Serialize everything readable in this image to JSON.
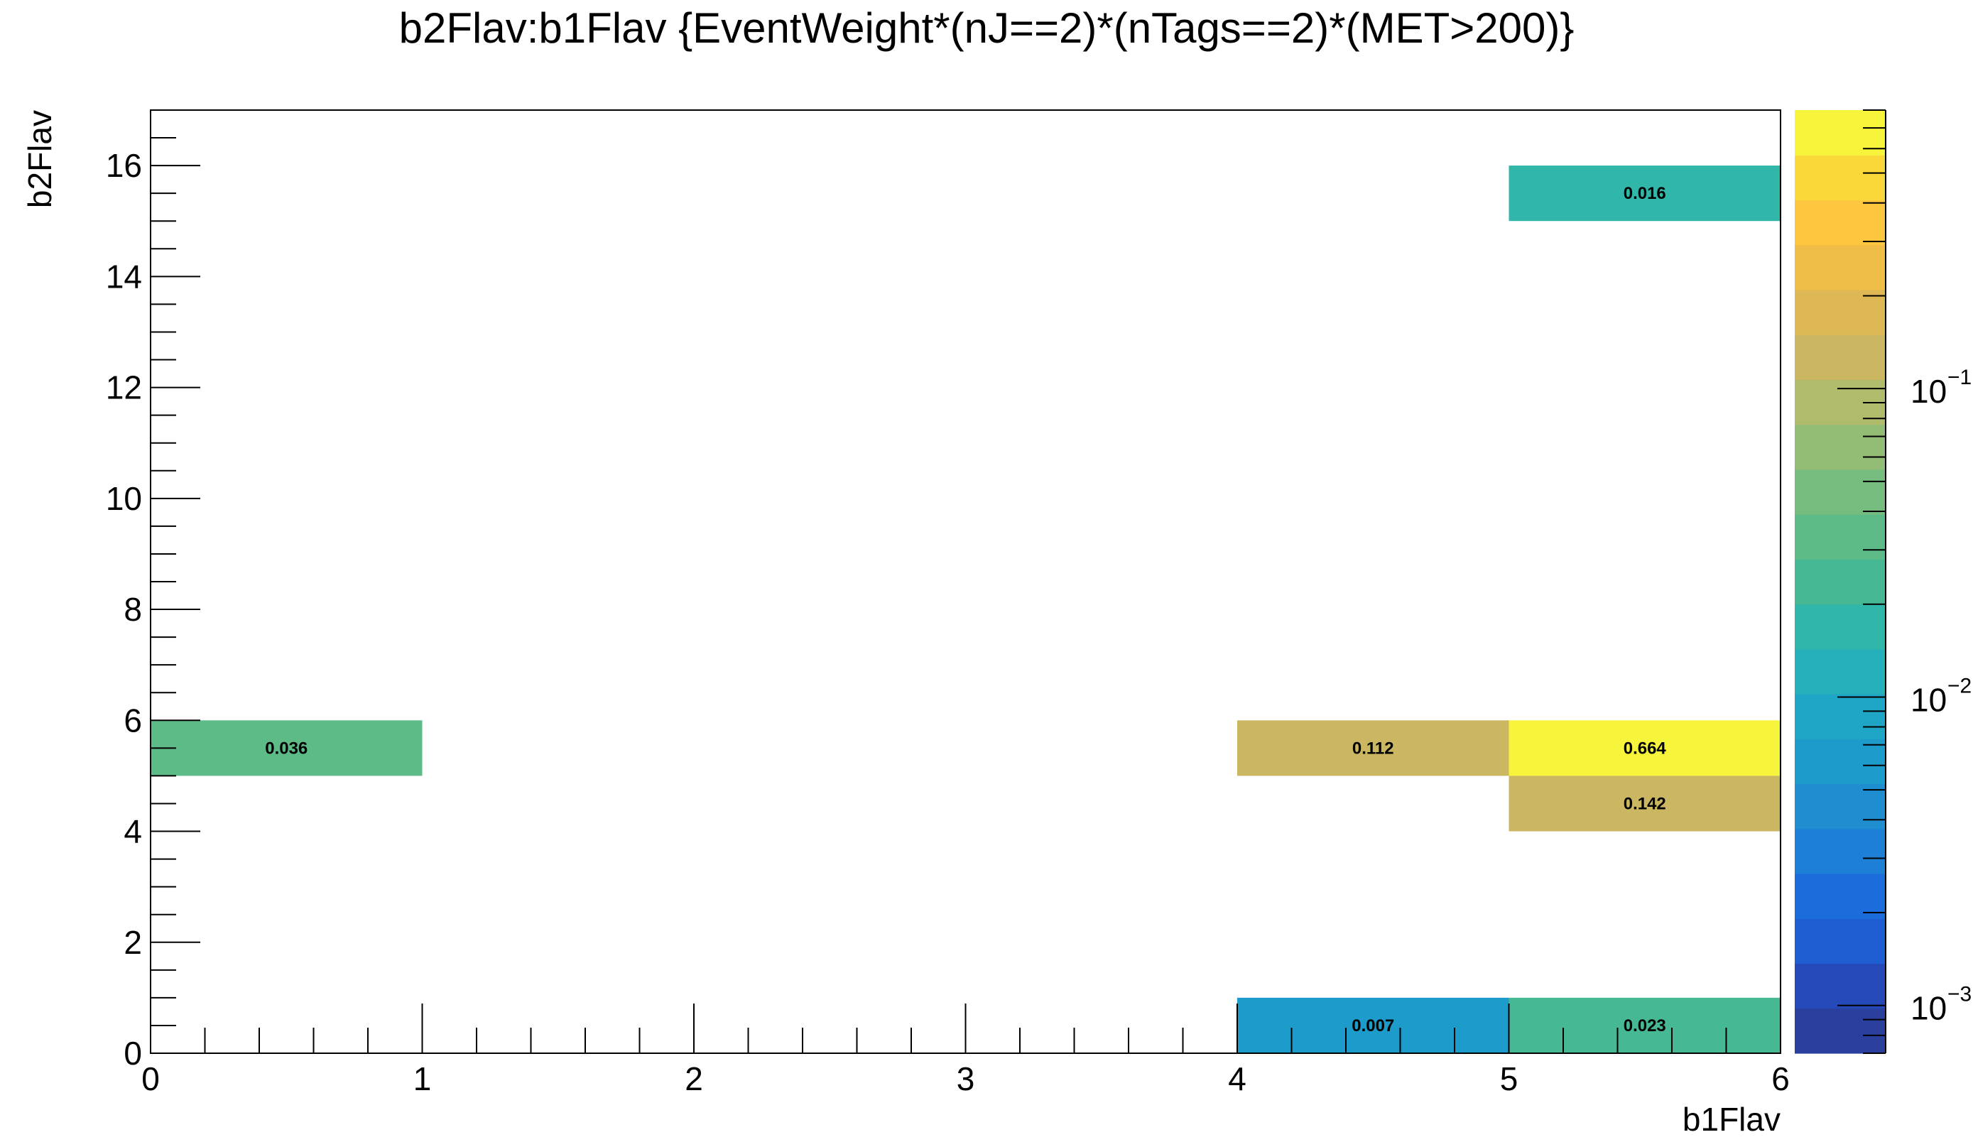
{
  "chart_data": {
    "type": "heatmap",
    "title": "b2Flav:b1Flav {EventWeight*(nJ==2)*(nTags==2)*(MET>200)}",
    "xlabel": "b1Flav",
    "ylabel": "b2Flav",
    "xlim": [
      0,
      6
    ],
    "ylim": [
      0,
      17
    ],
    "x_ticks": [
      "0",
      "1",
      "2",
      "3",
      "4",
      "5",
      "6"
    ],
    "y_ticks": [
      "0",
      "2",
      "4",
      "6",
      "8",
      "10",
      "12",
      "14",
      "16"
    ],
    "z_scale": "log",
    "z_range": [
      0.0007,
      0.8
    ],
    "colorbar_ticks": [
      {
        "base": "10",
        "exp": "−1",
        "value": 0.1
      },
      {
        "base": "10",
        "exp": "−2",
        "value": 0.01
      },
      {
        "base": "10",
        "exp": "−3",
        "value": 0.001
      }
    ],
    "grid": false,
    "cells": [
      {
        "x": [
          0,
          1
        ],
        "y": [
          5,
          6
        ],
        "value": 0.036,
        "label": "0.036"
      },
      {
        "x": [
          4,
          5
        ],
        "y": [
          5,
          6
        ],
        "value": 0.112,
        "label": "0.112"
      },
      {
        "x": [
          5,
          6
        ],
        "y": [
          5,
          6
        ],
        "value": 0.664,
        "label": "0.664"
      },
      {
        "x": [
          5,
          6
        ],
        "y": [
          4,
          5
        ],
        "value": 0.142,
        "label": "0.142"
      },
      {
        "x": [
          5,
          6
        ],
        "y": [
          15,
          16
        ],
        "value": 0.016,
        "label": "0.016"
      },
      {
        "x": [
          4,
          5
        ],
        "y": [
          0,
          1
        ],
        "value": 0.007,
        "label": "0.007"
      },
      {
        "x": [
          5,
          6
        ],
        "y": [
          0,
          1
        ],
        "value": 0.023,
        "label": "0.023"
      }
    ],
    "palette": [
      "#2a3f9e",
      "#2549b8",
      "#1f5dd2",
      "#1b6ddc",
      "#1d7fd6",
      "#1e8ed0",
      "#1d9bcb",
      "#1fa6c6",
      "#25afba",
      "#31b6aa",
      "#46b994",
      "#5cbb86",
      "#76bc7e",
      "#93bd74",
      "#b1bb6c",
      "#cbb762",
      "#dfb856",
      "#f0bc48",
      "#fcc63f",
      "#fbd83a",
      "#f7f43c"
    ]
  }
}
